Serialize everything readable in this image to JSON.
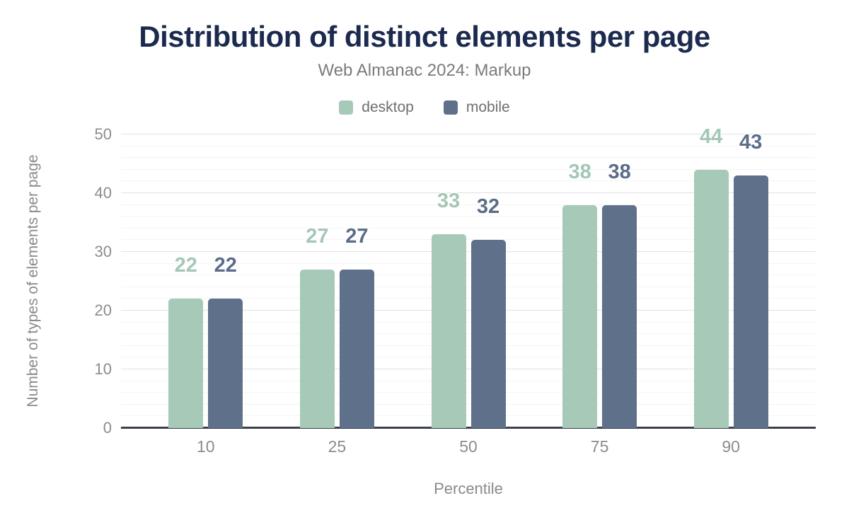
{
  "chart_data": {
    "type": "bar",
    "title": "Distribution of distinct elements per page",
    "subtitle": "Web Almanac 2024: Markup",
    "xlabel": "Percentile",
    "ylabel": "Number of types of elements per page",
    "categories": [
      "10",
      "25",
      "50",
      "75",
      "90"
    ],
    "series": [
      {
        "name": "desktop",
        "values": [
          22,
          27,
          33,
          38,
          44
        ],
        "labels": [
          "22",
          "27",
          "33",
          "38",
          "44"
        ]
      },
      {
        "name": "mobile",
        "values": [
          22,
          27,
          32,
          38,
          43
        ],
        "labels": [
          "22",
          "27",
          "32",
          "38",
          "43"
        ]
      }
    ],
    "ylim": [
      0,
      50
    ],
    "yticks": [
      0,
      10,
      20,
      30,
      40,
      50
    ],
    "minor_tick_step": 2,
    "grid": "on",
    "legend_position": "top-center"
  },
  "colors": {
    "background": "#ffffff",
    "title": "#1b2a4e",
    "subtitle": "#7b7b7b",
    "tick_text": "#8c8c8c",
    "axis_line": "#3b4149",
    "grid_major": "#e2e2e7",
    "grid_minor": "#f4f4f6",
    "desktop": "#a6c9b8",
    "mobile": "#5f708b",
    "desktop_label": "#a4c7b6",
    "mobile_label": "#5c6d89"
  }
}
